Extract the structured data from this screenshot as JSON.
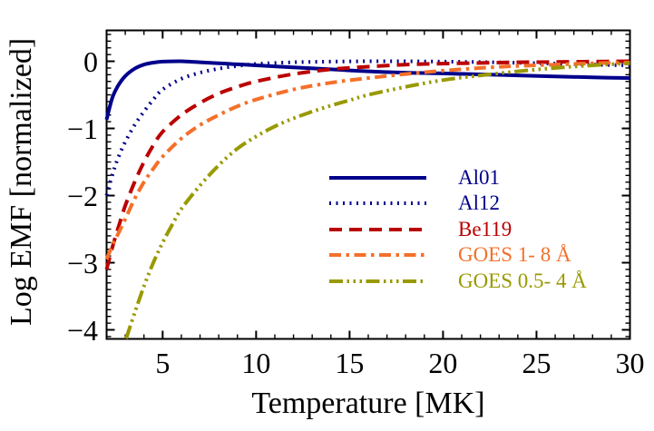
{
  "chart_data": {
    "type": "line",
    "title": "",
    "xlabel": "Temperature [MK]",
    "ylabel": "Log EMF [normalized]",
    "xlim": [
      2,
      30
    ],
    "ylim": [
      -4.135,
      0.46
    ],
    "x_ticks": [
      5,
      10,
      15,
      20,
      25,
      30
    ],
    "x_tick_labels": [
      "5",
      "10",
      "15",
      "20",
      "25",
      "30"
    ],
    "x_minor_step": 1,
    "y_ticks": [
      0,
      -1,
      -2,
      -3,
      -4
    ],
    "y_tick_labels": [
      "0",
      "−1",
      "−2",
      "−3",
      "−4"
    ],
    "y_minor_step": 0.1,
    "grid": false,
    "legend_position": "inside lower right",
    "axis_color": "#000000",
    "background_color": "#ffffff",
    "series": [
      {
        "id": "al01",
        "name": "Al01",
        "color": "#00008B",
        "linestyle": "solid",
        "x": [
          2,
          2.3,
          2.6,
          3,
          3.5,
          4,
          4.5,
          5,
          6,
          7,
          8,
          9,
          10,
          12,
          14,
          16,
          18,
          20,
          22,
          24,
          26,
          28,
          30
        ],
        "y": [
          -0.87,
          -0.55,
          -0.37,
          -0.22,
          -0.11,
          -0.05,
          -0.02,
          -0.005,
          0,
          -0.015,
          -0.03,
          -0.045,
          -0.06,
          -0.09,
          -0.12,
          -0.15,
          -0.17,
          -0.18,
          -0.195,
          -0.21,
          -0.225,
          -0.24,
          -0.25
        ]
      },
      {
        "id": "al12",
        "name": "Al12",
        "color": "#00008B",
        "linestyle": "dotted",
        "x": [
          2,
          2.3,
          2.6,
          3,
          3.5,
          4,
          4.5,
          5,
          6,
          7,
          8,
          9,
          10,
          12,
          14,
          16,
          18,
          20,
          22,
          24,
          26,
          28,
          30
        ],
        "y": [
          -2.0,
          -1.7,
          -1.45,
          -1.2,
          -0.95,
          -0.75,
          -0.57,
          -0.42,
          -0.26,
          -0.17,
          -0.11,
          -0.07,
          -0.04,
          -0.015,
          -0.005,
          0,
          0,
          -0.005,
          -0.012,
          -0.022,
          -0.035,
          -0.05,
          -0.06
        ]
      },
      {
        "id": "be119",
        "name": "Be119",
        "color": "#BB0000",
        "linestyle": "dashed",
        "x": [
          2,
          2.3,
          2.6,
          3,
          3.5,
          4,
          4.5,
          5,
          6,
          7,
          8,
          9,
          10,
          12,
          14,
          16,
          18,
          20,
          22,
          24,
          26,
          28,
          30
        ],
        "y": [
          -3.1,
          -2.78,
          -2.5,
          -2.15,
          -1.8,
          -1.5,
          -1.25,
          -1.05,
          -0.8,
          -0.62,
          -0.48,
          -0.38,
          -0.3,
          -0.19,
          -0.12,
          -0.08,
          -0.05,
          -0.035,
          -0.025,
          -0.015,
          -0.01,
          -0.005,
          0
        ]
      },
      {
        "id": "goes-1-8",
        "name": "GOES 1- 8 Å",
        "color": "#F4702A",
        "linestyle": "dash-dot",
        "x": [
          2,
          2.3,
          2.6,
          3,
          3.5,
          4,
          4.5,
          5,
          6,
          7,
          8,
          9,
          10,
          12,
          14,
          16,
          18,
          20,
          22,
          24,
          26,
          28,
          30
        ],
        "y": [
          -2.95,
          -2.75,
          -2.58,
          -2.35,
          -2.05,
          -1.8,
          -1.6,
          -1.42,
          -1.15,
          -0.95,
          -0.8,
          -0.67,
          -0.57,
          -0.42,
          -0.32,
          -0.25,
          -0.19,
          -0.14,
          -0.1,
          -0.07,
          -0.05,
          -0.03,
          -0.02
        ]
      },
      {
        "id": "goes-05-4",
        "name": "GOES 0.5- 4 Å",
        "color": "#999900",
        "linestyle": "dash-dot-dot-dot",
        "x": [
          3.05,
          3.5,
          4,
          4.5,
          5,
          5.5,
          6,
          7,
          8,
          9,
          10,
          11,
          12,
          13,
          14,
          15,
          16,
          18,
          20,
          22,
          24,
          26,
          28,
          30
        ],
        "y": [
          -4.13,
          -3.75,
          -3.35,
          -3.0,
          -2.7,
          -2.44,
          -2.2,
          -1.85,
          -1.55,
          -1.3,
          -1.12,
          -0.97,
          -0.85,
          -0.75,
          -0.66,
          -0.58,
          -0.5,
          -0.38,
          -0.28,
          -0.21,
          -0.15,
          -0.1,
          -0.06,
          -0.03
        ]
      }
    ]
  }
}
